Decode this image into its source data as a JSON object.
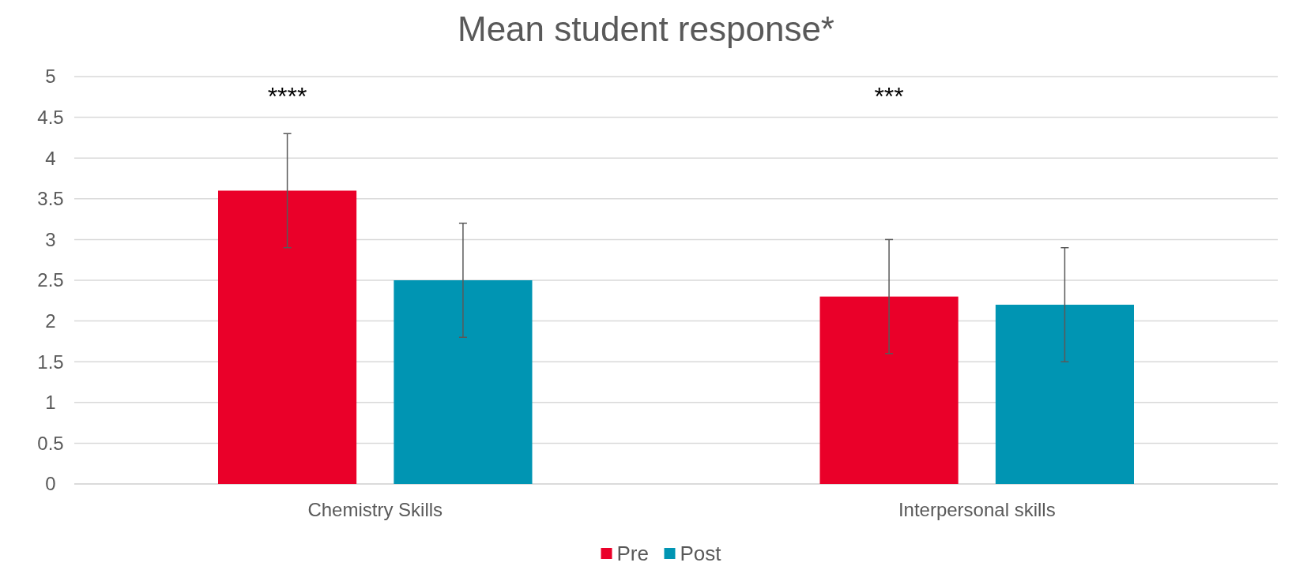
{
  "chart_data": {
    "type": "bar",
    "title": "Mean student response*",
    "categories": [
      "Chemistry Skills",
      "Interpersonal skills"
    ],
    "series": [
      {
        "name": "Pre",
        "color": "#ea0029",
        "values": [
          3.6,
          2.3
        ],
        "errors": [
          0.7,
          0.7
        ]
      },
      {
        "name": "Post",
        "color": "#0095b3",
        "values": [
          2.5,
          2.2
        ],
        "errors": [
          0.7,
          0.7
        ]
      }
    ],
    "ylim": [
      0,
      5
    ],
    "yticks": [
      0,
      0.5,
      1,
      1.5,
      2,
      2.5,
      3,
      3.5,
      4,
      4.5,
      5
    ],
    "grid": "y",
    "legend": "bottom",
    "annotations": [
      "****",
      "***"
    ]
  }
}
